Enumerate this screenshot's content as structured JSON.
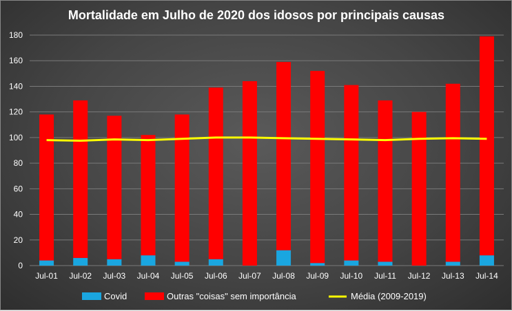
{
  "chart_data": {
    "type": "bar",
    "stacked": true,
    "title": "Mortalidade em Julho de 2020 dos idosos  por principais causas",
    "xlabel": "",
    "ylabel": "",
    "ylim": [
      0,
      180
    ],
    "yticks": [
      0,
      20,
      40,
      60,
      80,
      100,
      120,
      140,
      160,
      180
    ],
    "grid": true,
    "legend_position": "bottom",
    "categories": [
      "Jul-01",
      "Jul-02",
      "Jul-03",
      "Jul-04",
      "Jul-05",
      "Jul-06",
      "Jul-07",
      "Jul-08",
      "Jul-09",
      "Jul-10",
      "Jul-11",
      "Jul-12",
      "Jul-13",
      "Jul-14"
    ],
    "series": [
      {
        "name": "Covid",
        "kind": "bar",
        "color": "#1aa6e0",
        "values": [
          4,
          6,
          5,
          8,
          3,
          5,
          0,
          12,
          2,
          4,
          3,
          0,
          3,
          8
        ]
      },
      {
        "name": "Outras \"coisas\" sem importância",
        "kind": "bar",
        "color": "#ff0000",
        "values": [
          114,
          123,
          112,
          94,
          115,
          134,
          144,
          147,
          150,
          137,
          126,
          120,
          139,
          171
        ]
      },
      {
        "name": "Média (2009-2019)",
        "kind": "line",
        "color": "#ffff00",
        "values": [
          98,
          97.5,
          98.5,
          98,
          99,
          100,
          100,
          99.5,
          99,
          98.5,
          98,
          99,
          99.5,
          99
        ]
      }
    ]
  }
}
